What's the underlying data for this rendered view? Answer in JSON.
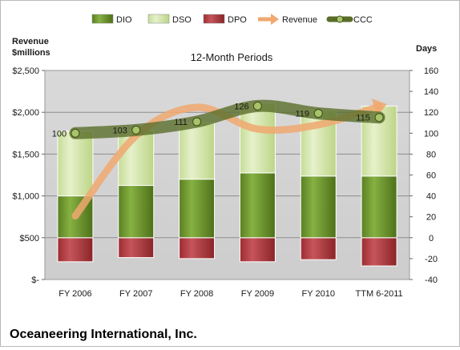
{
  "chart_data": {
    "type": "bar",
    "title": "12-Month Periods",
    "company": "Oceaneering International, Inc.",
    "categories": [
      "FY 2006",
      "FY 2007",
      "FY 2008",
      "FY 2009",
      "FY 2010",
      "TTM 6-2011"
    ],
    "left_axis": {
      "title_line1": "Revenue",
      "title_line2": "$millions",
      "min": 0,
      "max": 2500,
      "step": 500,
      "tick_labels": [
        "$-",
        "$500",
        "$1,000",
        "$1,500",
        "$2,000",
        "$2,500"
      ]
    },
    "right_axis": {
      "title": "Days",
      "min": -40,
      "max": 160,
      "step": 20,
      "tick_labels": [
        "-40",
        "-20",
        "0",
        "20",
        "40",
        "60",
        "80",
        "100",
        "120",
        "140",
        "160"
      ]
    },
    "legend": [
      "DIO",
      "DSO",
      "DPO",
      "Revenue",
      "CCC"
    ],
    "series": [
      {
        "name": "DIO",
        "axis": "right",
        "kind": "stacked-bar",
        "values": [
          40,
          50,
          56,
          62,
          59,
          59
        ]
      },
      {
        "name": "DSO",
        "axis": "right",
        "kind": "stacked-bar",
        "values": [
          62,
          53,
          54,
          67,
          63,
          67
        ]
      },
      {
        "name": "DPO",
        "axis": "right",
        "kind": "negative-bar",
        "values": [
          -23,
          -19,
          -20,
          -23,
          -21,
          -27
        ]
      },
      {
        "name": "Revenue",
        "axis": "left",
        "kind": "line",
        "values": [
          760,
          1720,
          2060,
          1800,
          1850,
          2070
        ]
      },
      {
        "name": "CCC",
        "axis": "right",
        "kind": "line",
        "values": [
          100,
          103,
          111,
          126,
          119,
          115
        ]
      }
    ],
    "ccc_labels": [
      "100",
      "103",
      "111",
      "126",
      "119",
      "115"
    ],
    "colors": {
      "DIO": "#6f9a2e",
      "DSO": "#d6e8b0",
      "DPO": "#b13a3f",
      "Revenue": "#f0a870",
      "CCC": "#5a6e2a",
      "plot_bg": "#d4d4d4",
      "grid": "#8e8e8e"
    },
    "grid": true,
    "legend_position": "top"
  }
}
